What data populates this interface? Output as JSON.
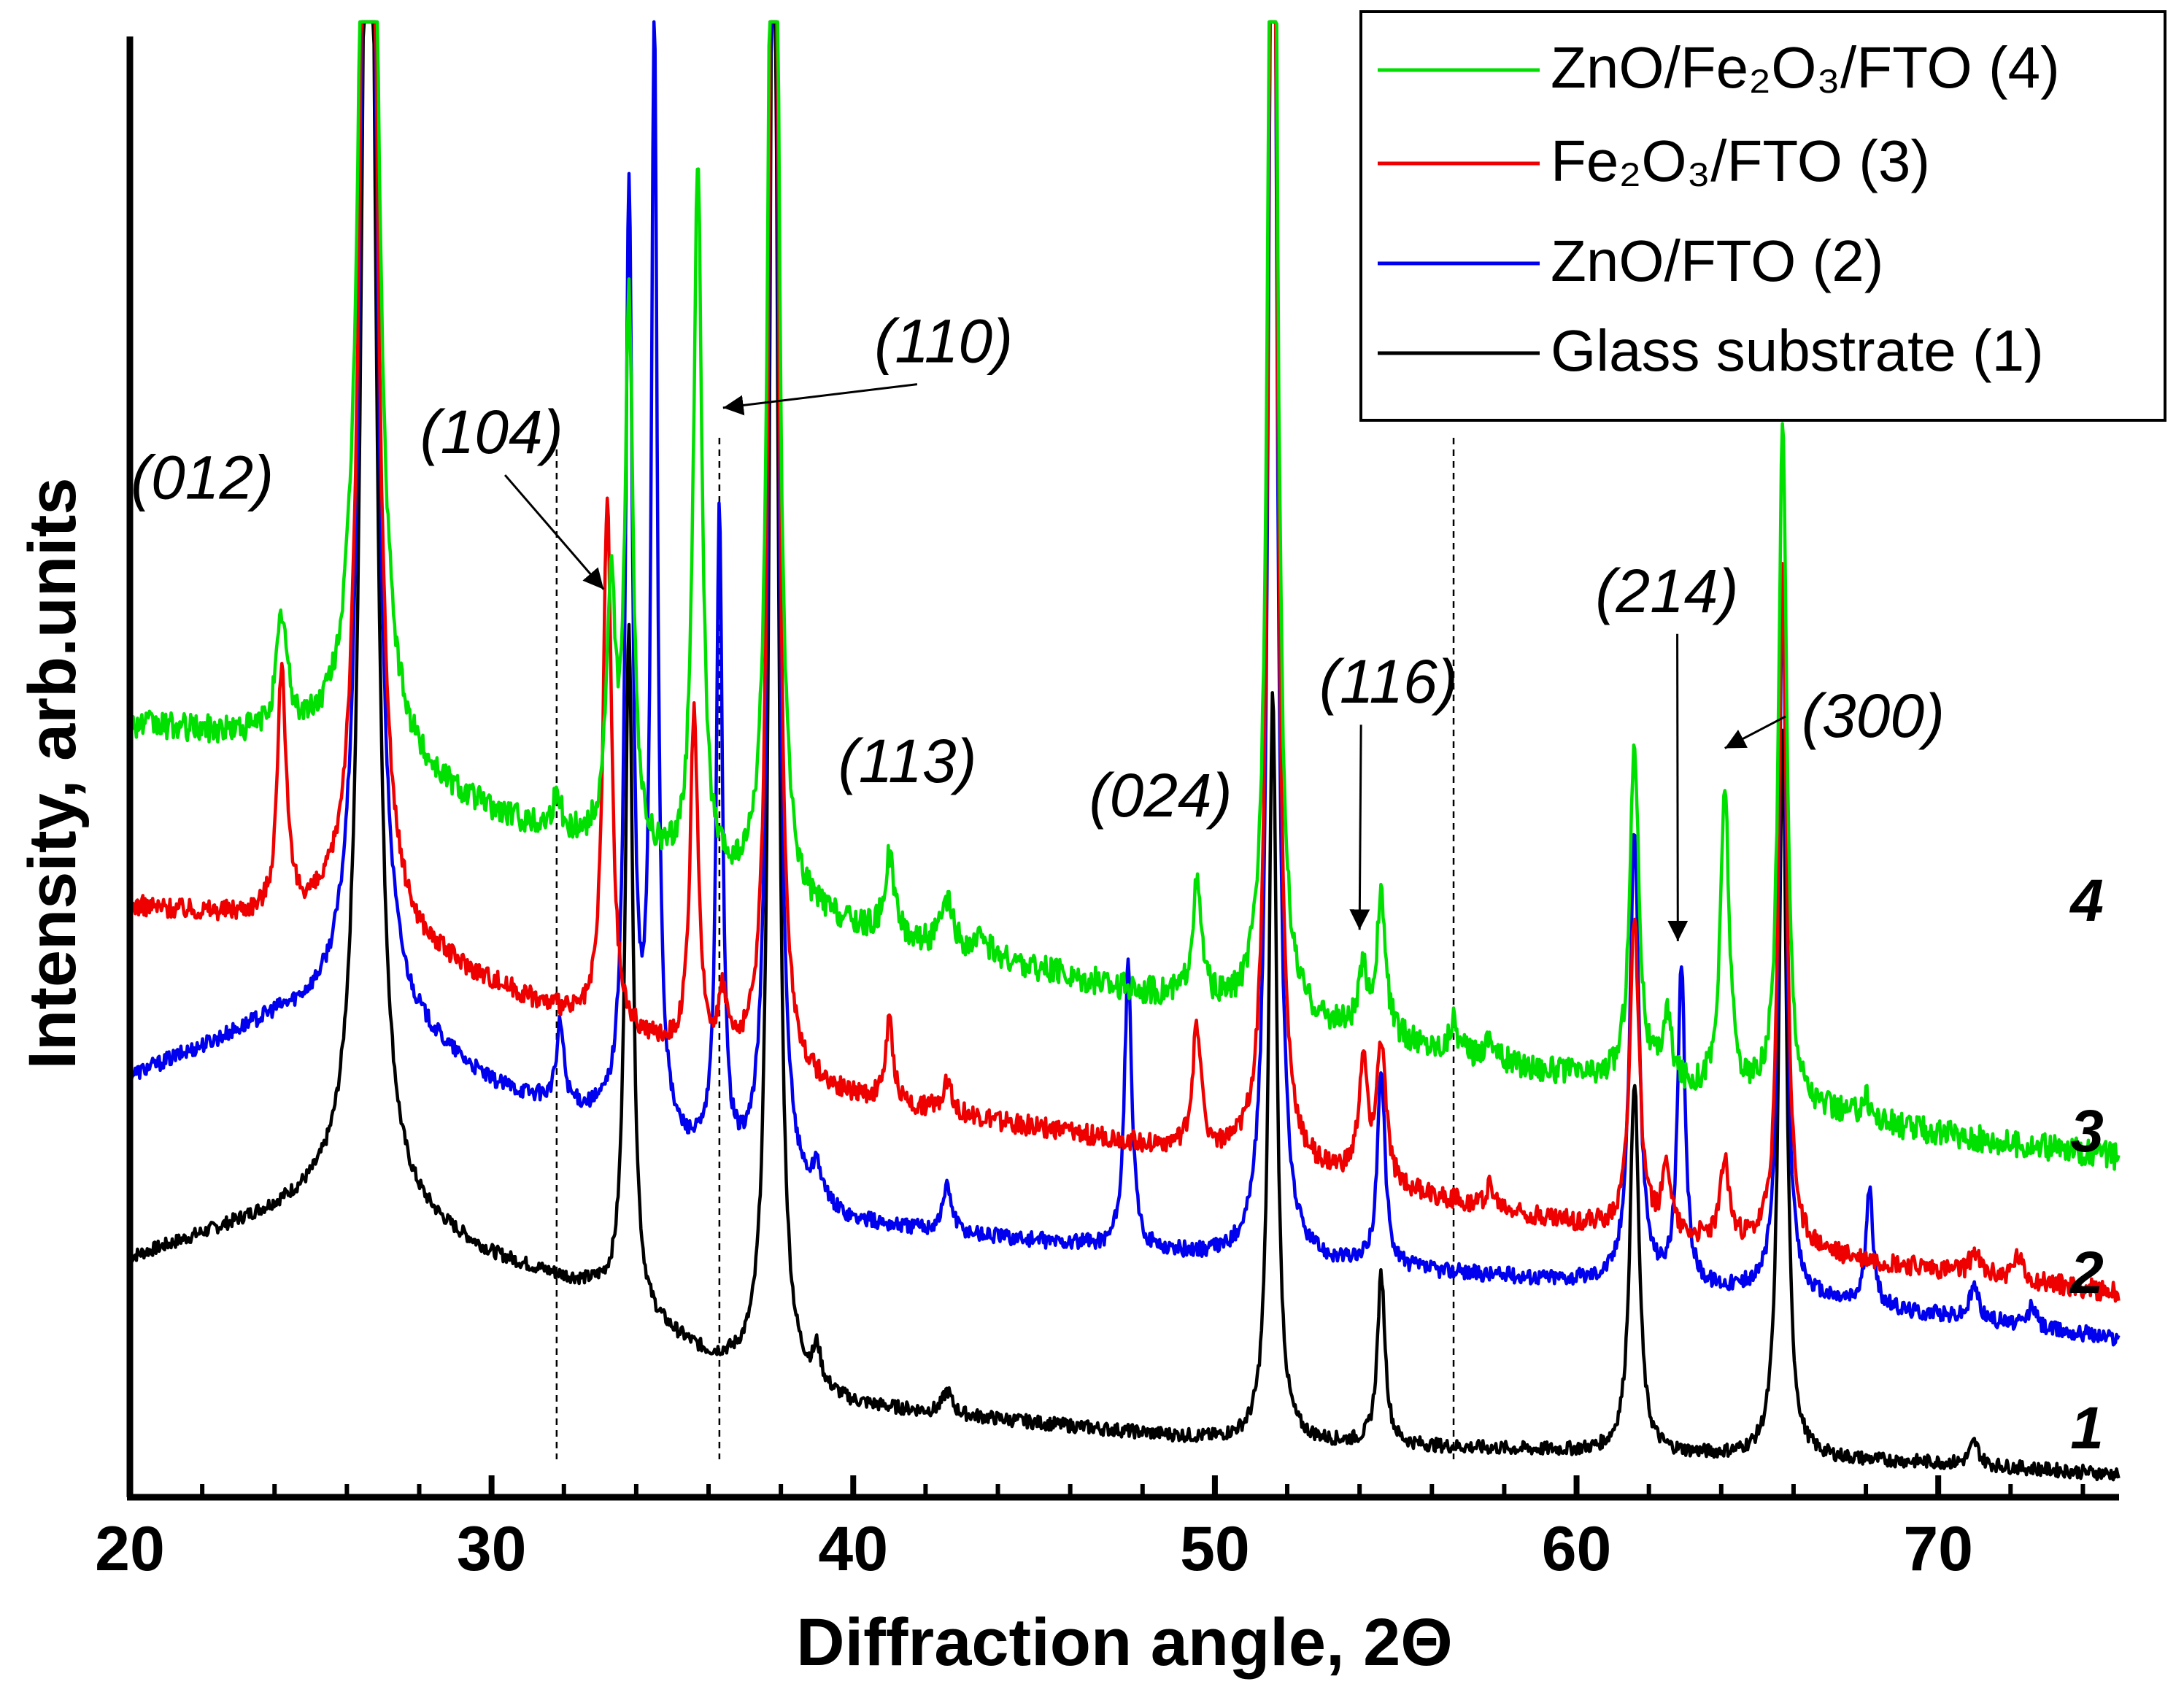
{
  "chart_data": {
    "type": "line",
    "title": "",
    "xlabel": "Diffraction angle, 2Θ",
    "ylabel": "Intensity, arb.units",
    "xlim": [
      20,
      75
    ],
    "ylim": [
      0,
      1.3
    ],
    "x_ticks": [
      20,
      30,
      40,
      50,
      60,
      70
    ],
    "grid": false,
    "legend_position": "top-right",
    "series": [
      {
        "name": "ZnO/Fe2O3/FTO (4)",
        "legend_label": "ZnO/Fe₂O₃/FTO (4)",
        "curve_number": "4",
        "color": "#00e000",
        "baseline": [
          [
            20,
            0.68
          ],
          [
            26,
            0.66
          ],
          [
            30,
            0.6
          ],
          [
            33,
            0.57
          ],
          [
            40,
            0.5
          ],
          [
            50,
            0.43
          ],
          [
            55,
            0.4
          ],
          [
            60,
            0.37
          ],
          [
            65,
            0.35
          ],
          [
            70,
            0.32
          ],
          [
            75,
            0.3
          ]
        ],
        "peaks": [
          [
            24.2,
            0.1,
            0.18
          ],
          [
            26.6,
            1.5,
            0.22
          ],
          [
            31.8,
            0.03,
            0.15
          ],
          [
            33.3,
            0.22,
            0.15
          ],
          [
            33.8,
            0.48,
            0.13
          ],
          [
            35.7,
            0.63,
            0.14
          ],
          [
            37.8,
            1.5,
            0.13
          ],
          [
            41.0,
            0.07,
            0.15
          ],
          [
            42.6,
            0.04,
            0.2
          ],
          [
            43.6,
            0.02,
            0.15
          ],
          [
            49.5,
            0.1,
            0.16
          ],
          [
            51.6,
            1.5,
            0.13
          ],
          [
            54.1,
            0.05,
            0.15
          ],
          [
            54.6,
            0.12,
            0.15
          ],
          [
            56.6,
            0.03,
            0.12
          ],
          [
            57.6,
            0.02,
            0.15
          ],
          [
            61.6,
            0.3,
            0.15
          ],
          [
            62.5,
            0.06,
            0.15
          ],
          [
            64.1,
            0.27,
            0.14
          ],
          [
            65.7,
            0.61,
            0.13
          ],
          [
            68.0,
            0.02,
            0.15
          ]
        ],
        "noise": 0.012
      },
      {
        "name": "Fe2O3/FTO (3)",
        "legend_label": "Fe₂O₃/FTO (3)",
        "curve_number": "3",
        "color": "#ee0000",
        "baseline": [
          [
            20,
            0.52
          ],
          [
            26,
            0.5
          ],
          [
            30,
            0.45
          ],
          [
            33,
            0.41
          ],
          [
            40,
            0.35
          ],
          [
            50,
            0.3
          ],
          [
            55,
            0.27
          ],
          [
            60,
            0.24
          ],
          [
            65,
            0.22
          ],
          [
            70,
            0.2
          ],
          [
            75,
            0.18
          ]
        ],
        "peaks": [
          [
            24.2,
            0.22,
            0.14
          ],
          [
            26.6,
            1.5,
            0.22
          ],
          [
            33.2,
            0.47,
            0.14
          ],
          [
            35.6,
            0.3,
            0.13
          ],
          [
            36.4,
            0.05,
            0.15
          ],
          [
            37.8,
            1.5,
            0.13
          ],
          [
            41.0,
            0.07,
            0.13
          ],
          [
            42.6,
            0.03,
            0.15
          ],
          [
            49.5,
            0.11,
            0.14
          ],
          [
            51.6,
            1.5,
            0.13
          ],
          [
            54.1,
            0.1,
            0.15
          ],
          [
            54.6,
            0.12,
            0.15
          ],
          [
            57.6,
            0.02,
            0.12
          ],
          [
            61.6,
            0.28,
            0.15
          ],
          [
            62.5,
            0.06,
            0.14
          ],
          [
            64.1,
            0.07,
            0.14
          ],
          [
            65.7,
            0.61,
            0.13
          ],
          [
            71.0,
            0.02,
            0.15
          ],
          [
            72.2,
            0.02,
            0.15
          ]
        ],
        "noise": 0.009
      },
      {
        "name": "ZnO/FTO (2)",
        "legend_label": "ZnO/FTO (2)",
        "curve_number": "2",
        "color": "#0000ee",
        "baseline": [
          [
            20,
            0.37
          ],
          [
            24,
            0.42
          ],
          [
            26,
            0.43
          ],
          [
            28,
            0.4
          ],
          [
            30,
            0.36
          ],
          [
            33,
            0.33
          ],
          [
            40,
            0.24
          ],
          [
            50,
            0.21
          ],
          [
            55,
            0.2
          ],
          [
            60,
            0.19
          ],
          [
            65,
            0.18
          ],
          [
            70,
            0.16
          ],
          [
            75,
            0.14
          ]
        ],
        "peaks": [
          [
            26.6,
            1.5,
            0.22
          ],
          [
            31.9,
            0.07,
            0.12
          ],
          [
            33.8,
            0.82,
            0.12
          ],
          [
            34.5,
            0.98,
            0.1
          ],
          [
            36.3,
            0.57,
            0.1
          ],
          [
            37.8,
            1.5,
            0.13
          ],
          [
            39.0,
            0.03,
            0.12
          ],
          [
            42.6,
            0.04,
            0.15
          ],
          [
            47.6,
            0.25,
            0.12
          ],
          [
            51.6,
            1.5,
            0.13
          ],
          [
            54.6,
            0.17,
            0.13
          ],
          [
            61.6,
            0.4,
            0.15
          ],
          [
            62.9,
            0.28,
            0.12
          ],
          [
            65.7,
            0.64,
            0.12
          ],
          [
            68.1,
            0.1,
            0.12
          ],
          [
            71.0,
            0.03,
            0.15
          ],
          [
            72.6,
            0.02,
            0.12
          ]
        ],
        "noise": 0.007
      },
      {
        "name": "Glass substrate (1)",
        "legend_label": "Glass substrate (1)",
        "curve_number": "1",
        "color": "#000000",
        "baseline": [
          [
            20,
            0.21
          ],
          [
            24,
            0.25
          ],
          [
            26,
            0.27
          ],
          [
            28,
            0.24
          ],
          [
            30,
            0.21
          ],
          [
            33,
            0.18
          ],
          [
            36,
            0.12
          ],
          [
            40,
            0.08
          ],
          [
            50,
            0.05
          ],
          [
            55,
            0.045
          ],
          [
            60,
            0.04
          ],
          [
            65,
            0.035
          ],
          [
            70,
            0.03
          ],
          [
            75,
            0.02
          ]
        ],
        "peaks": [
          [
            26.6,
            1.5,
            0.22
          ],
          [
            33.8,
            0.6,
            0.13
          ],
          [
            37.8,
            1.5,
            0.13
          ],
          [
            39.0,
            0.03,
            0.12
          ],
          [
            42.6,
            0.02,
            0.15
          ],
          [
            51.6,
            0.66,
            0.13
          ],
          [
            54.6,
            0.15,
            0.13
          ],
          [
            61.6,
            0.33,
            0.15
          ],
          [
            65.7,
            0.64,
            0.13
          ],
          [
            71.0,
            0.02,
            0.15
          ]
        ],
        "noise": 0.006
      }
    ],
    "reference_lines_x": [
      31.8,
      36.3,
      56.6
    ],
    "annotations": [
      {
        "label": "(012)",
        "x": 22.0,
        "y": 0.88,
        "arrow": null
      },
      {
        "label": "(104)",
        "x": 30.0,
        "y": 0.92,
        "arrow": [
          33.1,
          0.8
        ]
      },
      {
        "label": "(110)",
        "x": 42.5,
        "y": 1.0,
        "arrow": [
          36.4,
          0.96
        ]
      },
      {
        "label": "(113)",
        "x": 41.5,
        "y": 0.63,
        "arrow": null
      },
      {
        "label": "(024)",
        "x": 48.5,
        "y": 0.6,
        "arrow": null
      },
      {
        "label": "(116)",
        "x": 54.8,
        "y": 0.7,
        "arrow": [
          54.0,
          0.5
        ]
      },
      {
        "label": "(214)",
        "x": 62.5,
        "y": 0.78,
        "arrow": [
          62.8,
          0.49
        ]
      },
      {
        "label": "(300)",
        "x": 68.2,
        "y": 0.67,
        "arrow": [
          64.1,
          0.66
        ]
      }
    ]
  }
}
